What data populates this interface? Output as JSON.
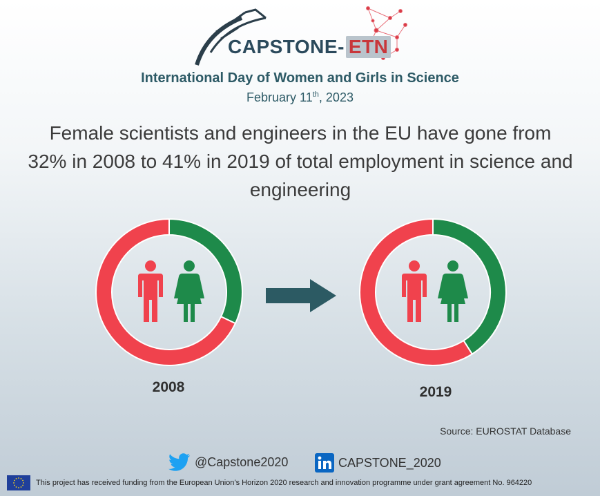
{
  "logo": {
    "name_main": "CAPSTONE-",
    "name_accent": "ETN"
  },
  "event": {
    "title": "International Day of Women and Girls in Science",
    "date_prefix": "February 11",
    "date_sup": "th",
    "date_suffix": ", 2023"
  },
  "headline": "Female scientists and engineers in the EU have gone from 32% in 2008 to 41% in 2019 of total employment in science and engineering",
  "colors": {
    "women": "#1e8a4a",
    "men": "#f0424d",
    "arrow": "#2c5a63",
    "title": "#2d5a66"
  },
  "chart_data": [
    {
      "type": "pie",
      "year_label": "2008",
      "categories": [
        "Women",
        "Men"
      ],
      "values": [
        32,
        68
      ]
    },
    {
      "type": "pie",
      "year_label": "2019",
      "categories": [
        "Women",
        "Men"
      ],
      "values": [
        41,
        59
      ]
    }
  ],
  "source": "Source:  EUROSTAT Database",
  "social": {
    "twitter": "@Capstone2020",
    "linkedin": "CAPSTONE_2020"
  },
  "footer": "This project has received funding from the European Union’s Horizon 2020 research and innovation programme under grant agreement  No. 964220"
}
